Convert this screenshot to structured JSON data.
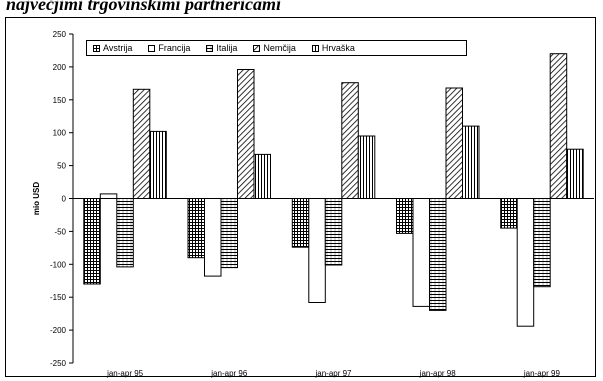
{
  "title": "največjimi trgovinskimi partnericami",
  "chart_data": {
    "type": "bar",
    "ylabel": "mio USD",
    "ylim": [
      -250,
      250
    ],
    "yticks": [
      250,
      200,
      150,
      100,
      50,
      0,
      -50,
      -100,
      -150,
      -200,
      -250
    ],
    "legend_position": "top",
    "grid": false,
    "categories": [
      "jan-apr 95",
      "jan-apr 96",
      "jan-apr 97",
      "jan-apr 98",
      "jan-apr 99"
    ],
    "series": [
      {
        "name": "Avstrija",
        "pattern": "grid",
        "values": [
          -130,
          -90,
          -74,
          -53,
          -45
        ]
      },
      {
        "name": "Francija",
        "pattern": "none",
        "values": [
          7,
          -118,
          -158,
          -164,
          -194
        ]
      },
      {
        "name": "Italija",
        "pattern": "hlines",
        "values": [
          -104,
          -105,
          -101,
          -170,
          -134
        ]
      },
      {
        "name": "Nemčija",
        "pattern": "diag",
        "values": [
          166,
          196,
          176,
          168,
          220
        ]
      },
      {
        "name": "Hrvaška",
        "pattern": "vlines",
        "values": [
          102,
          67,
          95,
          110,
          75
        ]
      }
    ]
  }
}
